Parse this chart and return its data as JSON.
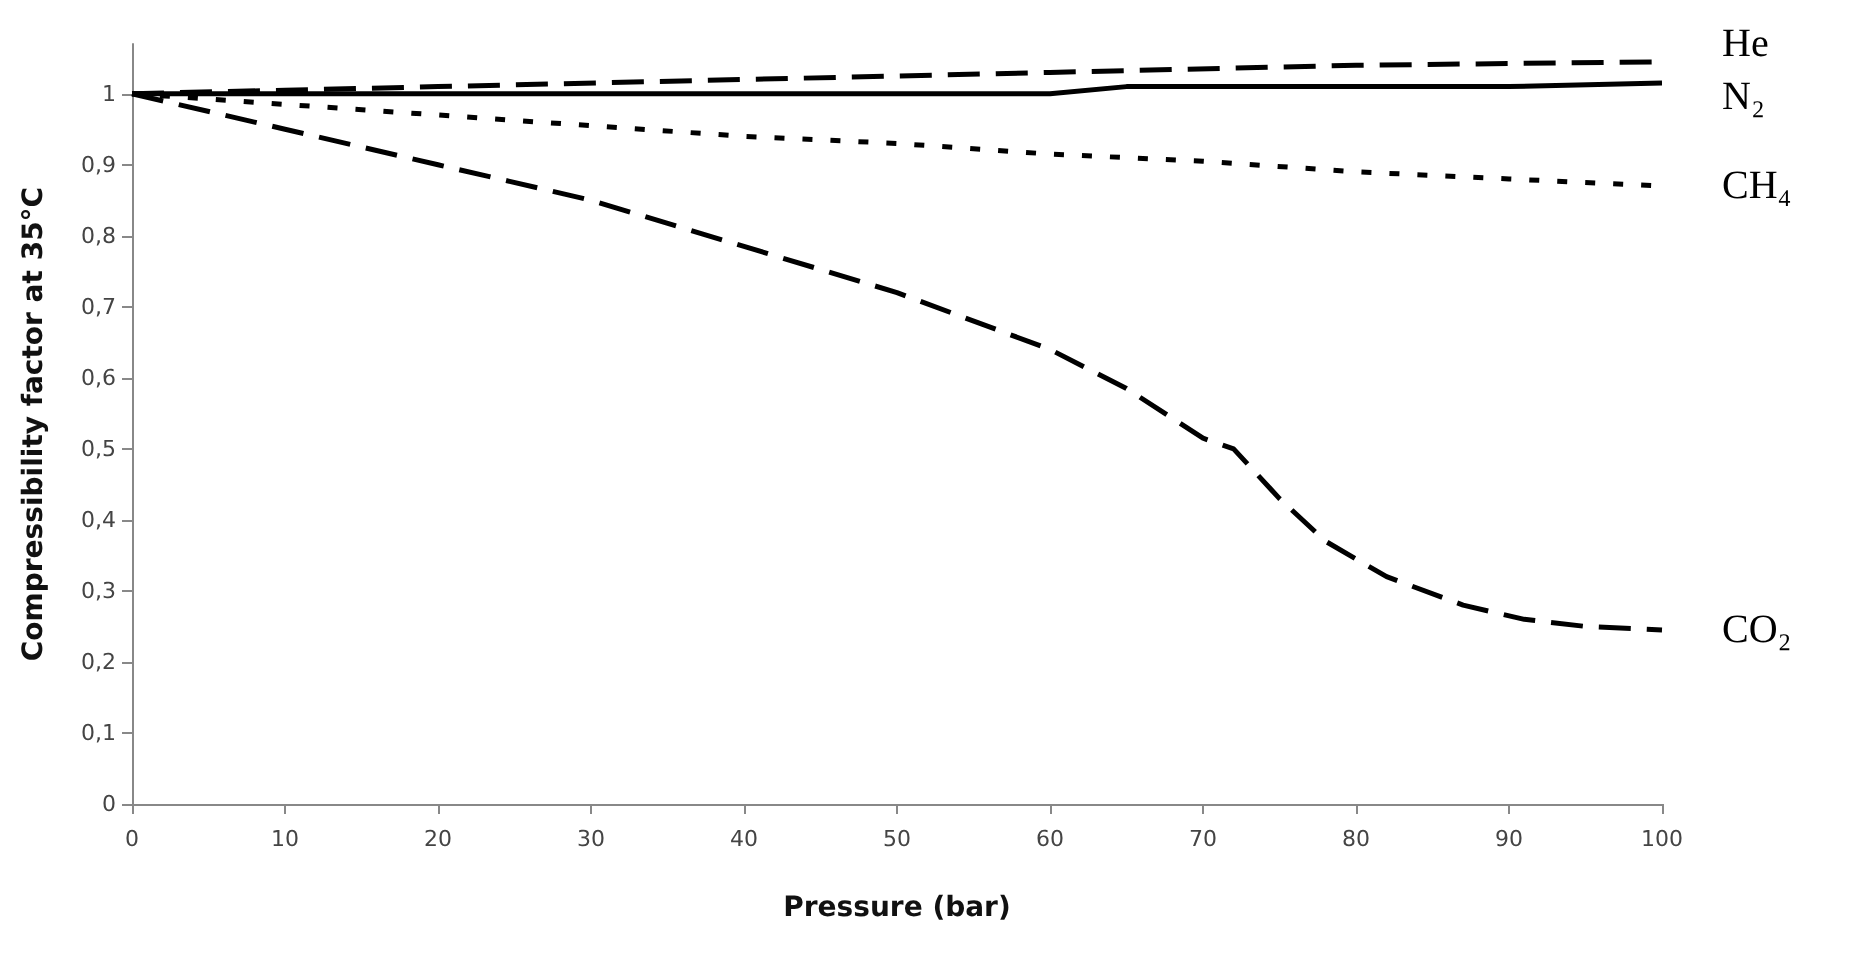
{
  "chart_data": {
    "type": "line",
    "xlabel": "Pressure (bar)",
    "ylabel": "Compressibility factor at 35°C",
    "xlim": [
      0,
      100
    ],
    "xticks": [
      0,
      10,
      20,
      30,
      40,
      50,
      60,
      70,
      80,
      90,
      100
    ],
    "ylim": [
      0,
      1.07
    ],
    "yticks": [
      0,
      {
        "value": 0.1,
        "label": "0,1"
      },
      {
        "value": 0.2,
        "label": "0,2"
      },
      {
        "value": 0.3,
        "label": "0,3"
      },
      {
        "value": 0.4,
        "label": "0,4"
      },
      {
        "value": 0.5,
        "label": "0,5"
      },
      {
        "value": 0.6,
        "label": "0,6"
      },
      {
        "value": 0.7,
        "label": "0,7"
      },
      {
        "value": 0.8,
        "label": "0,8"
      },
      {
        "value": 0.9,
        "label": "0,9"
      },
      1
    ],
    "grid": false,
    "legend": false,
    "marker": "none",
    "series": [
      {
        "name": "He",
        "color": "#000000",
        "line_style": "dashed",
        "x": [
          0,
          10,
          20,
          40,
          60,
          80,
          100
        ],
        "values": [
          1,
          1.005,
          1.01,
          1.02,
          1.03,
          1.04,
          1.045
        ]
      },
      {
        "name": "N₂",
        "color": "#000000",
        "line_style": "solid",
        "x": [
          0,
          20,
          40,
          60,
          65,
          90,
          100
        ],
        "values": [
          1,
          1,
          1,
          1,
          1.01,
          1.01,
          1.015
        ]
      },
      {
        "name": "CH₄",
        "color": "#000000",
        "line_style": "dotted",
        "x": [
          0,
          10,
          20,
          30,
          40,
          50,
          60,
          70,
          80,
          90,
          100
        ],
        "values": [
          1,
          0.985,
          0.97,
          0.955,
          0.94,
          0.93,
          0.915,
          0.905,
          0.89,
          0.88,
          0.87
        ]
      },
      {
        "name": "CO₂",
        "color": "#000000",
        "line_style": "dashed",
        "x": [
          0,
          10,
          20,
          30,
          40,
          50,
          60,
          65,
          70,
          72,
          75,
          78,
          82,
          87,
          91,
          95,
          100
        ],
        "values": [
          1,
          0.95,
          0.9,
          0.85,
          0.785,
          0.72,
          0.64,
          0.585,
          0.515,
          0.5,
          0.43,
          0.37,
          0.32,
          0.28,
          0.26,
          0.25,
          0.245
        ]
      }
    ]
  }
}
